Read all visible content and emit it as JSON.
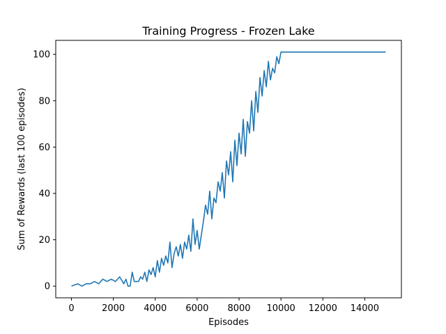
{
  "chart_data": {
    "type": "line",
    "title": "Training Progress - Frozen Lake",
    "xlabel": "Episodes",
    "ylabel": "Sum of Rewards (last 100 episodes)",
    "xlim": [
      -750,
      15750
    ],
    "ylim": [
      -5.05,
      106.05
    ],
    "xticks": [
      0,
      2000,
      4000,
      6000,
      8000,
      10000,
      12000,
      14000
    ],
    "xtick_labels": [
      "0",
      "2000",
      "4000",
      "6000",
      "8000",
      "10000",
      "12000",
      "14000"
    ],
    "yticks": [
      0,
      20,
      40,
      60,
      80,
      100
    ],
    "ytick_labels": [
      "0",
      "20",
      "40",
      "60",
      "80",
      "100"
    ],
    "grid": false,
    "series": [
      {
        "color": "#1f77b4",
        "x": [
          0,
          300,
          500,
          700,
          900,
          1100,
          1300,
          1500,
          1700,
          1900,
          2100,
          2300,
          2500,
          2600,
          2700,
          2800,
          2900,
          3000,
          3100,
          3200,
          3300,
          3400,
          3500,
          3600,
          3700,
          3800,
          3900,
          4000,
          4100,
          4200,
          4300,
          4400,
          4500,
          4600,
          4700,
          4800,
          4900,
          5000,
          5100,
          5200,
          5300,
          5400,
          5500,
          5600,
          5700,
          5800,
          5900,
          6000,
          6100,
          6200,
          6300,
          6400,
          6500,
          6600,
          6700,
          6800,
          6900,
          7000,
          7100,
          7200,
          7300,
          7400,
          7500,
          7600,
          7700,
          7800,
          7900,
          8000,
          8100,
          8200,
          8300,
          8400,
          8500,
          8600,
          8700,
          8800,
          8900,
          9000,
          9100,
          9200,
          9300,
          9400,
          9500,
          9600,
          9700,
          9800,
          9900,
          10000,
          10200,
          12000,
          15000
        ],
        "y": [
          0,
          1,
          0,
          1,
          1,
          2,
          1,
          3,
          2,
          3,
          2,
          4,
          1,
          3,
          0,
          0,
          6,
          2,
          2,
          2,
          4,
          3,
          6,
          2,
          7,
          5,
          8,
          4,
          11,
          6,
          12,
          9,
          13,
          10,
          19,
          8,
          14,
          17,
          13,
          18,
          12,
          19,
          16,
          22,
          15,
          29,
          18,
          24,
          16,
          22,
          28,
          35,
          31,
          41,
          29,
          38,
          36,
          45,
          41,
          49,
          38,
          54,
          48,
          58,
          45,
          63,
          52,
          66,
          57,
          72,
          56,
          71,
          66,
          80,
          67,
          84,
          75,
          90,
          82,
          93,
          86,
          97,
          89,
          94,
          92,
          99,
          96,
          101,
          101,
          101,
          101
        ]
      }
    ]
  }
}
